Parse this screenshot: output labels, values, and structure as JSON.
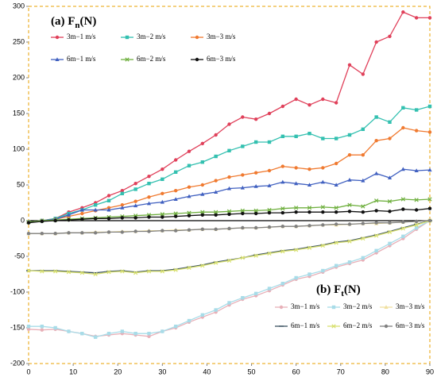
{
  "chart_data": {
    "type": "line",
    "annotations": [
      {
        "main": "(a)  F",
        "sub": "n",
        "unit": "(N)"
      },
      {
        "main": "(b)  F",
        "sub": "t",
        "unit": "(N)"
      }
    ],
    "x": [
      0,
      3,
      6,
      9,
      12,
      15,
      18,
      21,
      24,
      27,
      30,
      33,
      36,
      39,
      42,
      45,
      48,
      51,
      54,
      57,
      60,
      63,
      66,
      69,
      72,
      75,
      78,
      81,
      84,
      87,
      90
    ],
    "xlim": [
      0,
      90
    ],
    "xticks": [
      0,
      10,
      20,
      30,
      40,
      50,
      60,
      70,
      80,
      90
    ],
    "ylim": [
      -200,
      300
    ],
    "yticks": [
      -200,
      -150,
      -100,
      -50,
      0,
      50,
      100,
      150,
      200,
      250,
      300
    ],
    "series": [
      {
        "name": "3m−1 m/s",
        "color": "#e0405a",
        "marker": "circle",
        "values": [
          -2,
          0,
          3,
          12,
          18,
          25,
          35,
          42,
          52,
          62,
          72,
          85,
          97,
          108,
          120,
          135,
          145,
          142,
          150,
          160,
          170,
          162,
          170,
          165,
          218,
          205,
          250,
          258,
          292,
          284,
          284
        ]
      },
      {
        "name": "3m−2 m/s",
        "color": "#33c0b0",
        "marker": "square",
        "values": [
          -2,
          0,
          3,
          10,
          15,
          22,
          28,
          38,
          44,
          52,
          58,
          68,
          77,
          82,
          90,
          98,
          104,
          110,
          110,
          118,
          118,
          122,
          115,
          115,
          120,
          128,
          145,
          138,
          158,
          155,
          160
        ]
      },
      {
        "name": "3m−3 m/s",
        "color": "#f07a30",
        "marker": "circle",
        "values": [
          -2,
          0,
          2,
          6,
          10,
          14,
          18,
          22,
          27,
          33,
          38,
          42,
          47,
          50,
          56,
          61,
          64,
          67,
          70,
          76,
          74,
          72,
          74,
          80,
          92,
          92,
          112,
          115,
          130,
          126,
          124
        ]
      },
      {
        "name": "6m−1 m/s",
        "color": "#4060c0",
        "marker": "triangle",
        "values": [
          -2,
          0,
          2,
          8,
          15,
          15,
          15,
          18,
          21,
          24,
          26,
          30,
          34,
          37,
          40,
          45,
          46,
          48,
          49,
          54,
          52,
          50,
          54,
          50,
          57,
          56,
          66,
          60,
          72,
          70,
          71
        ]
      },
      {
        "name": "6m−2 m/s",
        "color": "#70b040",
        "marker": "x",
        "values": [
          -2,
          0,
          1,
          2,
          3,
          4,
          5,
          6,
          7,
          8,
          9,
          10,
          11,
          12,
          12,
          13,
          14,
          14,
          15,
          17,
          18,
          18,
          19,
          18,
          22,
          20,
          28,
          27,
          30,
          29,
          30
        ]
      },
      {
        "name": "6m−3 m/s",
        "color": "#111111",
        "marker": "circle",
        "values": [
          -3,
          -1,
          0,
          1,
          2,
          3,
          3,
          4,
          4,
          5,
          5,
          6,
          7,
          8,
          8,
          9,
          10,
          10,
          11,
          11,
          12,
          12,
          12,
          12,
          13,
          12,
          14,
          13,
          16,
          15,
          17
        ]
      },
      {
        "name": "3m−1 m/s",
        "color": "#e8b0b8",
        "marker": "circle",
        "values": [
          -152,
          -153,
          -152,
          -155,
          -158,
          -162,
          -160,
          -158,
          -160,
          -162,
          -155,
          -150,
          -142,
          -135,
          -128,
          -118,
          -110,
          -105,
          -98,
          -90,
          -82,
          -78,
          -72,
          -65,
          -60,
          -55,
          -45,
          -35,
          -25,
          -12,
          0
        ]
      },
      {
        "name": "3m−2 m/s",
        "color": "#a8dce8",
        "marker": "square",
        "values": [
          -148,
          -148,
          -150,
          -155,
          -158,
          -163,
          -158,
          -155,
          -158,
          -158,
          -155,
          -148,
          -140,
          -132,
          -125,
          -115,
          -108,
          -102,
          -95,
          -88,
          -80,
          -75,
          -70,
          -63,
          -58,
          -52,
          -42,
          -32,
          -22,
          -10,
          0
        ]
      },
      {
        "name": "3m−3 m/s",
        "color": "#f0e0a0",
        "marker": "triangle",
        "values": [
          -18,
          -18,
          -18,
          -17,
          -17,
          -16,
          -16,
          -15,
          -15,
          -14,
          -14,
          -13,
          -13,
          -12,
          -12,
          -11,
          -10,
          -10,
          -9,
          -8,
          -8,
          -7,
          -6,
          -6,
          -5,
          -4,
          -4,
          -3,
          -2,
          -1,
          0
        ]
      },
      {
        "name": "6m−1 m/s",
        "color": "#3a5060",
        "marker": "dash",
        "values": [
          -70,
          -70,
          -70,
          -71,
          -72,
          -73,
          -71,
          -70,
          -72,
          -70,
          -70,
          -68,
          -65,
          -62,
          -58,
          -55,
          -52,
          -48,
          -45,
          -42,
          -40,
          -37,
          -34,
          -30,
          -28,
          -24,
          -20,
          -15,
          -10,
          -5,
          0
        ]
      },
      {
        "name": "6m−2 m/s",
        "color": "#d8e070",
        "marker": "x",
        "values": [
          -70,
          -71,
          -71,
          -72,
          -73,
          -75,
          -72,
          -71,
          -73,
          -71,
          -71,
          -69,
          -66,
          -63,
          -59,
          -56,
          -52,
          -49,
          -46,
          -43,
          -41,
          -38,
          -35,
          -31,
          -29,
          -25,
          -21,
          -16,
          -11,
          -6,
          0
        ]
      },
      {
        "name": "6m−3 m/s",
        "color": "#808080",
        "marker": "circle",
        "values": [
          -18,
          -18,
          -18,
          -17,
          -17,
          -17,
          -16,
          -16,
          -15,
          -15,
          -14,
          -14,
          -13,
          -12,
          -12,
          -11,
          -10,
          -10,
          -9,
          -8,
          -8,
          -7,
          -6,
          -5,
          -5,
          -4,
          -3,
          -3,
          -2,
          -1,
          0
        ]
      }
    ]
  }
}
